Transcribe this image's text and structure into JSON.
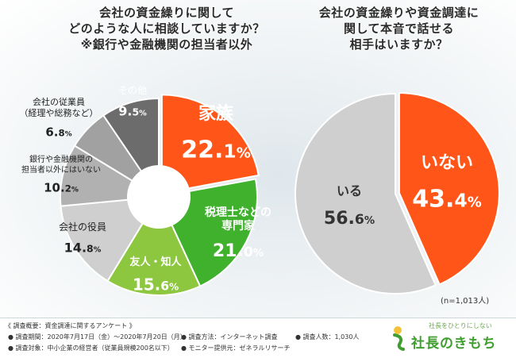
{
  "colors": {
    "orange": "#ff5519",
    "green_dark": "#3fb12d",
    "green_light": "#8dc63f",
    "gray1": "#cfcfcf",
    "gray2": "#b1b1b1",
    "gray3": "#a1a1a1",
    "gray4": "#8a8a8a",
    "gray5": "#6c6c6c",
    "brand_green": "#3f9e2f"
  },
  "left_title": {
    "line1": "会社の資金繰りに関して",
    "line2": "どのような人に相談していますか？",
    "line3": "※銀行や金融機関の担当者以外"
  },
  "right_title": {
    "line1": "会社の資金繰りや資金調達に",
    "line2": "関して本音で話せる",
    "line3": "相手はいますか？"
  },
  "chart_data": [
    {
      "type": "pie",
      "subtype": "donut",
      "title": "会社の資金繰りに関してどのような人に相談していますか？",
      "unit": "%",
      "slices": [
        {
          "label": "家族",
          "value": 22.1
        },
        {
          "label": "税理士などの専門家",
          "value": 21.0
        },
        {
          "label": "友人・知人",
          "value": 15.6
        },
        {
          "label": "会社の役員",
          "value": 14.8
        },
        {
          "label": "銀行や金融機関の担当者以外にはいない",
          "value": 10.2
        },
        {
          "label": "会社の従業員（経理や総務など）",
          "value": 6.8
        },
        {
          "label": "その他",
          "value": 9.5
        }
      ],
      "labels": [
        {
          "lines": [
            "家族"
          ],
          "value_main": "22.",
          "value_dec": "1",
          "pct": "%"
        },
        {
          "lines": [
            "税理士などの",
            "専門家"
          ],
          "value_main": "21.",
          "value_dec": "0",
          "pct": "%"
        },
        {
          "lines": [
            "友人・知人"
          ],
          "value_main": "15.",
          "value_dec": "6",
          "pct": "%"
        },
        {
          "lines": [
            "会社の役員"
          ],
          "value_main": "14.",
          "value_dec": "8",
          "pct": "%"
        },
        {
          "lines": [
            "銀行や金融機関の",
            "担当者以外にはいない"
          ],
          "value_main": "10.",
          "value_dec": "2",
          "pct": "%"
        },
        {
          "lines": [
            "会社の従業員",
            "（経理や総務など）"
          ],
          "value_main": "6.",
          "value_dec": "8",
          "pct": "%"
        },
        {
          "lines": [
            "その他"
          ],
          "value_main": "9.",
          "value_dec": "5",
          "pct": "%"
        }
      ]
    },
    {
      "type": "pie",
      "title": "会社の資金繰りや資金調達に関して本音で話せる相手はいますか？",
      "unit": "%",
      "slices": [
        {
          "label": "いない",
          "value": 43.4
        },
        {
          "label": "いる",
          "value": 56.6
        }
      ],
      "labels": [
        {
          "lines": [
            "いない"
          ],
          "value_main": "43.",
          "value_dec": "4",
          "pct": "%"
        },
        {
          "lines": [
            "いる"
          ],
          "value_main": "56.",
          "value_dec": "6",
          "pct": "%"
        }
      ],
      "note": "(n=1,013人)"
    }
  ],
  "footer": {
    "summary": "《 調査概要：資金調達に関するアンケート 》",
    "period": "● 調査期間：2020年7月17日（金）〜2020年7月20日（月）",
    "method": "● 調査方法：インターネット調査",
    "count": "● 調査人数：1,030人",
    "target": "● 調査対象：中小企業の経営者（従業員規模200名以下）",
    "monitor": "● モニター提供元：ゼネラルリサーチ"
  },
  "brand": {
    "tagline": "社長をひとりにしない",
    "name": "社長のきもち"
  }
}
